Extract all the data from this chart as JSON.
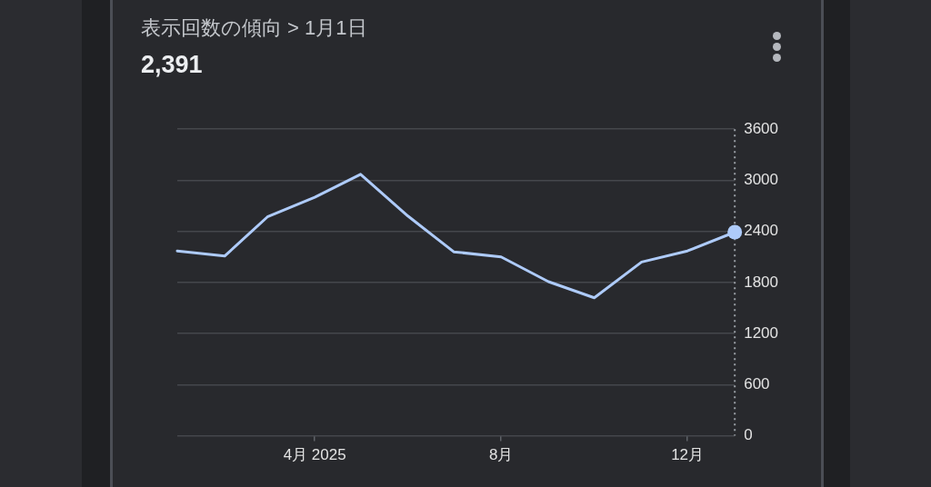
{
  "chart_data": {
    "type": "line",
    "title": "表示回数の傾向 > 1月1日",
    "subtitle": "2,391",
    "x": [
      "2025-01-01",
      "2025-02-01",
      "2025-03-01",
      "2025-04-01",
      "2025-05-01",
      "2025-06-01",
      "2025-07-01",
      "2025-08-01",
      "2025-09-01",
      "2025-10-01",
      "2025-11-01",
      "2025-12-01",
      "2026-01-01"
    ],
    "series": [
      {
        "color": "#aecbfa",
        "values": [
          2170,
          2110,
          2570,
          2800,
          3070,
          2580,
          2160,
          2100,
          1810,
          1620,
          2040,
          2170,
          2391
        ]
      },
      {
        "type": "scatter",
        "color": "#aecbfa",
        "x": [
          "2026-01-01"
        ],
        "values": [
          2391
        ],
        "marker": "circle"
      }
    ],
    "xlim": [
      "2025-01-01",
      "2026-01-01"
    ],
    "xticks": [
      {
        "value": "2025-04-01",
        "label": "4月 2025"
      },
      {
        "value": "2025-08-01",
        "label": "8月"
      },
      {
        "value": "2025-12-01",
        "label": "12月"
      }
    ],
    "ylim": [
      0,
      3600
    ],
    "yticks": [
      0,
      600,
      1200,
      1800,
      2400,
      3000,
      3600
    ],
    "grid": "y",
    "legend": false,
    "line_style": "solid"
  }
}
